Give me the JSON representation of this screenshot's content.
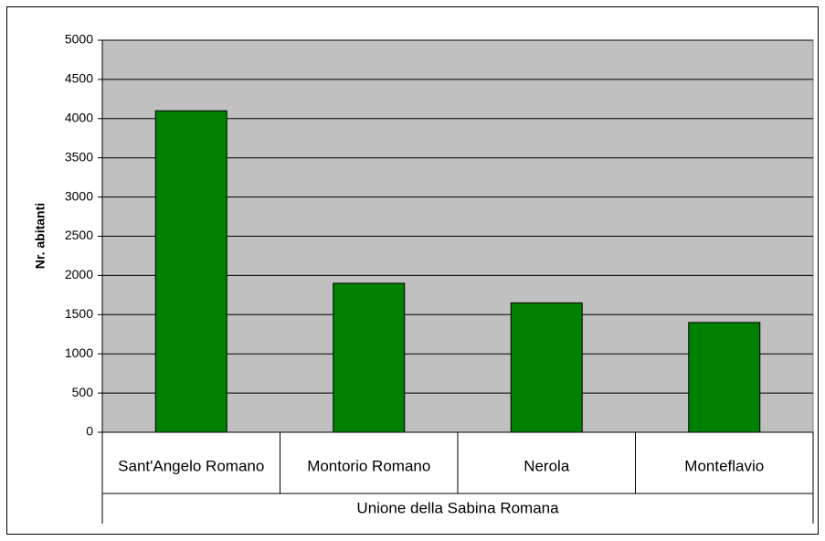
{
  "chart_data": {
    "type": "bar",
    "y_label": "Nr. abitanti",
    "group_label": "Unione della Sabina Romana",
    "categories": [
      "Sant'Angelo Romano",
      "Montorio Romano",
      "Nerola",
      "Monteflavio"
    ],
    "values": [
      4100,
      1900,
      1650,
      1400
    ],
    "color": "#008000",
    "plot_background": "#c0c0c0",
    "ylim": [
      0,
      5000
    ],
    "yticks": [
      0,
      500,
      1000,
      1500,
      2000,
      2500,
      3000,
      3500,
      4000,
      4500,
      5000
    ],
    "grid": true
  }
}
